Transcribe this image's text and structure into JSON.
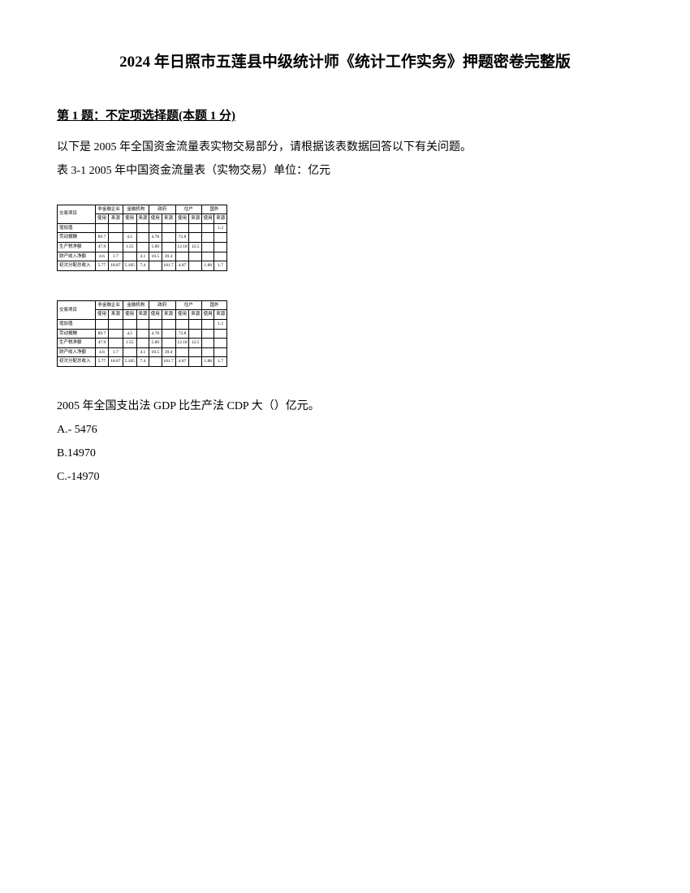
{
  "title": "2024 年日照市五莲县中级统计师《统计工作实务》押题密卷完整版",
  "section": "第 1 题：不定项选择题(本题 1 分)",
  "intro1": "以下是 2005 年全国资金流量表实物交易部分，请根据该表数据回答以下有关问题。",
  "intro2": "表 3-1 2005 年中国资金流量表（实物交易）单位：亿元",
  "table": {
    "colgroups": [
      "交易项目",
      "非金融企业",
      "金融机构",
      "政府",
      "住户",
      "国外"
    ],
    "subcols": [
      "使用",
      "来源",
      "使用",
      "来源",
      "使用",
      "来源",
      "使用",
      "来源",
      "使用",
      "来源"
    ],
    "rows": [
      {
        "label": "增加值",
        "cells": [
          "",
          "",
          "",
          "",
          "",
          "",
          "",
          "",
          "",
          "1.2"
        ]
      },
      {
        "label": "劳动报酬",
        "cells": [
          "89.7",
          "",
          "4.5",
          "",
          "4.78",
          "",
          "72.8",
          "",
          "",
          ""
        ]
      },
      {
        "label": "生产税净额",
        "cells": [
          "47.9",
          "",
          "1.55",
          "",
          "5.89",
          "",
          "12.18",
          "12.5",
          "",
          ""
        ]
      },
      {
        "label": "财产收入净额",
        "cells": [
          "4.6",
          "1.7",
          "",
          "4.1",
          "10.5",
          "39.4",
          "",
          "",
          "",
          ""
        ]
      },
      {
        "label": "初次分配总收入",
        "cells": [
          "5.77",
          "18.87",
          "5.185",
          "7.4",
          "",
          "181.7",
          "4.87",
          "",
          "1.88",
          "1.7"
        ]
      }
    ]
  },
  "question": "2005 年全国支出法 GDP 比生产法 CDP 大（）亿元。",
  "options": {
    "a": "A.- 5476",
    "b": "B.14970",
    "c": "C.-14970"
  }
}
